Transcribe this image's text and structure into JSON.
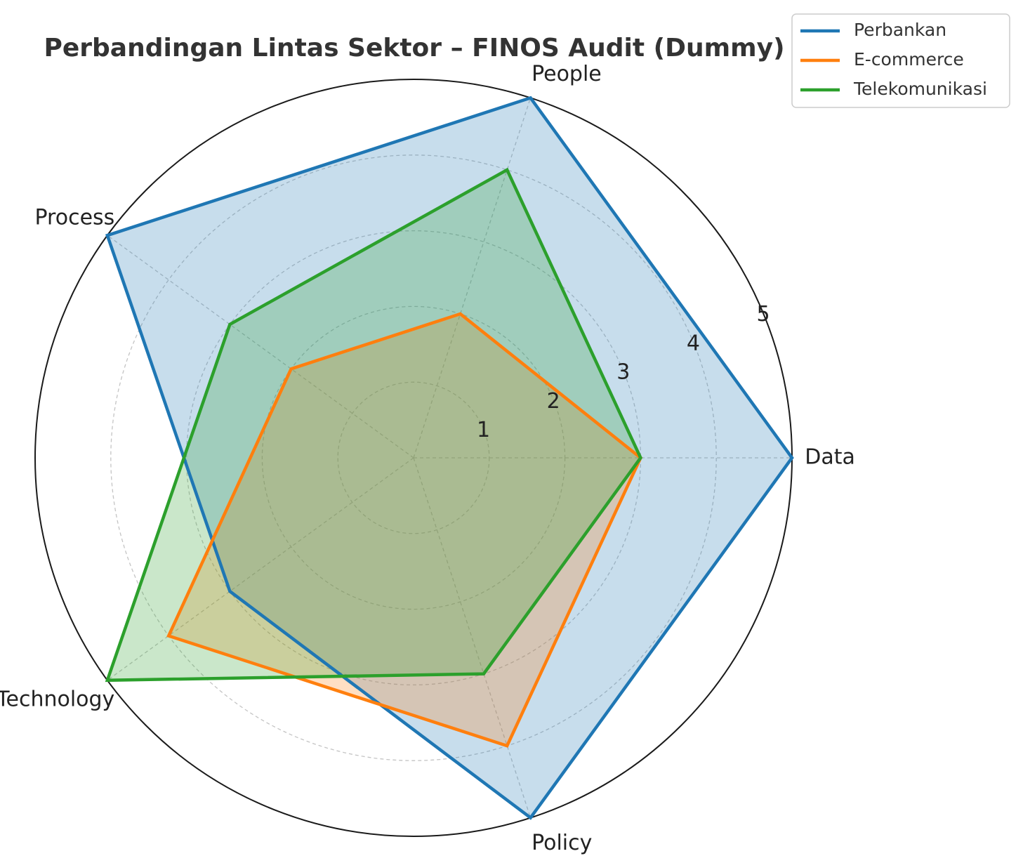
{
  "chart_data": {
    "type": "radar",
    "title": "Perbandingan Lintas Sektor – FINOS Audit (Dummy)",
    "categories": [
      "Data",
      "People",
      "Process",
      "Technology",
      "Policy"
    ],
    "rlim": [
      0,
      5
    ],
    "rticks": [
      1,
      2,
      3,
      4,
      5
    ],
    "rtick_labels": [
      "1",
      "2",
      "3",
      "4",
      "5"
    ],
    "grid": true,
    "legend_position": "top-right",
    "series": [
      {
        "name": "Perbankan",
        "values": [
          5,
          5,
          5,
          3,
          5
        ],
        "color": "#1f77b4"
      },
      {
        "name": "E-commerce",
        "values": [
          3,
          2,
          2,
          4,
          4
        ],
        "color": "#ff7f0e"
      },
      {
        "name": "Telekomunikasi",
        "values": [
          3,
          4,
          3,
          5,
          3
        ],
        "color": "#2ca02c"
      }
    ]
  }
}
